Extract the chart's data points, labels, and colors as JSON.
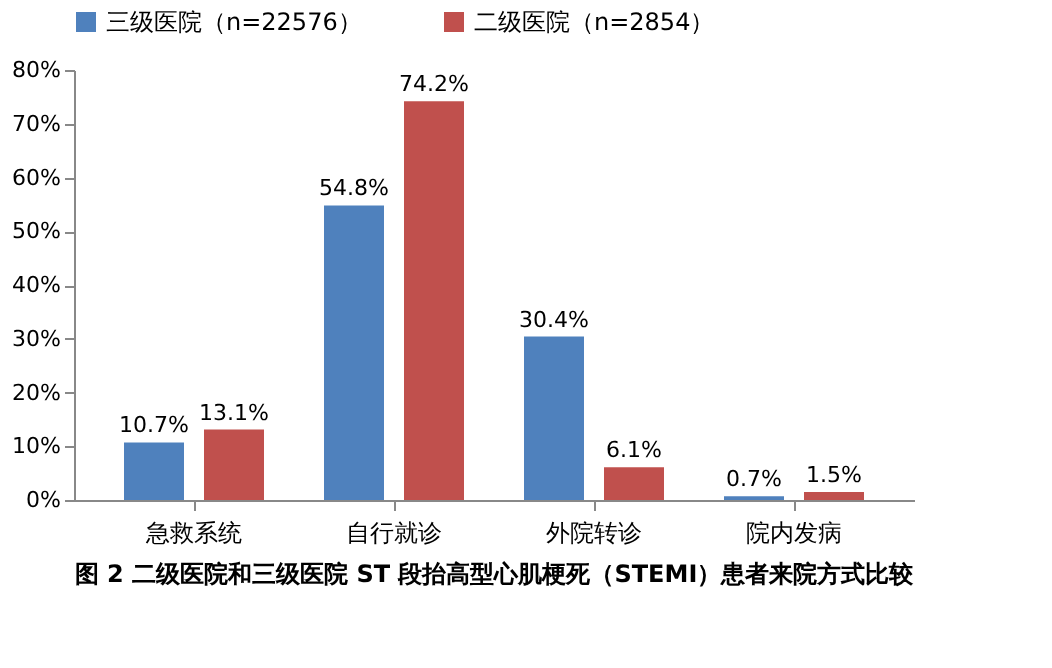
{
  "chart_data": {
    "type": "bar",
    "title": "图 2  二级医院和三级医院 ST 段抬高型心肌梗死（STEMI）患者来院方式比较",
    "categories": [
      "急救系统",
      "自行就诊",
      "外院转诊",
      "院内发病"
    ],
    "series": [
      {
        "name": "三级医院（n=22576）",
        "color": "#4f81bd",
        "values": [
          10.7,
          54.8,
          30.4,
          0.7
        ],
        "value_labels": [
          "10.7%",
          "54.8%",
          "30.4%",
          "0.7%"
        ]
      },
      {
        "name": "二级医院（n=2854）",
        "color": "#c0504d",
        "values": [
          13.1,
          74.2,
          6.1,
          1.5
        ],
        "value_labels": [
          "13.1%",
          "74.2%",
          "6.1%",
          "1.5%"
        ]
      }
    ],
    "ylim": [
      0,
      80
    ],
    "yticks": [
      {
        "value": 0,
        "label": "0%"
      },
      {
        "value": 10,
        "label": "10%"
      },
      {
        "value": 20,
        "label": "20%"
      },
      {
        "value": 30,
        "label": "30%"
      },
      {
        "value": 40,
        "label": "40%"
      },
      {
        "value": 50,
        "label": "50%"
      },
      {
        "value": 60,
        "label": "60%"
      },
      {
        "value": 70,
        "label": "70%"
      },
      {
        "value": 80,
        "label": "80%"
      }
    ],
    "grid": false,
    "legend": "top"
  }
}
